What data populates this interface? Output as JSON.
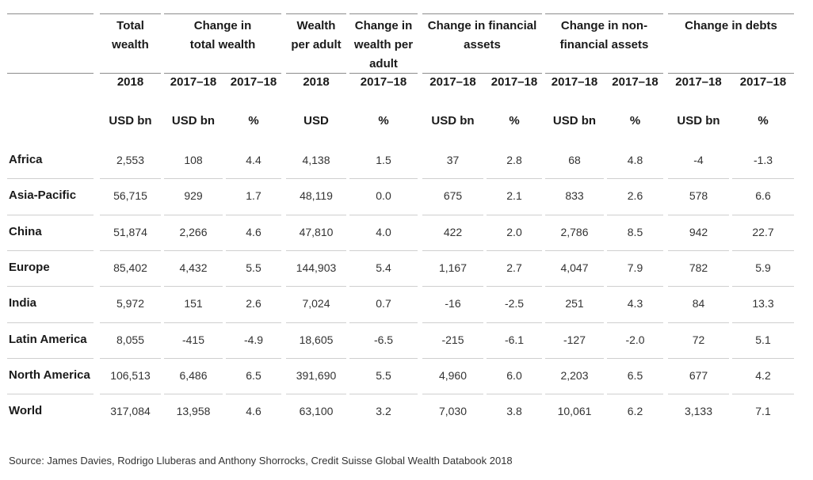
{
  "chart_data": {
    "type": "table",
    "header_groups": [
      {
        "label": "",
        "span": 1
      },
      {
        "label": "Total\nwealth",
        "span": 1
      },
      {
        "label": "Change in\ntotal wealth",
        "span": 2
      },
      {
        "label": "Wealth\nper adult",
        "span": 1
      },
      {
        "label": "Change in\nwealth per\nadult",
        "span": 1
      },
      {
        "label": "Change in financial\nassets",
        "span": 2
      },
      {
        "label": "Change in non-\nfinancial assets",
        "span": 2
      },
      {
        "label": "Change in debts",
        "span": 2
      }
    ],
    "years": [
      "2018",
      "2017–18",
      "2017–18",
      "2018",
      "2017–18",
      "2017–18",
      "2017–18",
      "2017–18",
      "2017–18",
      "2017–18",
      "2017–18"
    ],
    "units": [
      "USD bn",
      "USD bn",
      "%",
      "USD",
      "%",
      "USD bn",
      "%",
      "USD bn",
      "%",
      "USD bn",
      "%"
    ],
    "rows": [
      {
        "label": "Africa",
        "values": [
          "2,553",
          "108",
          "4.4",
          "4,138",
          "1.5",
          "37",
          "2.8",
          "68",
          "4.8",
          "-4",
          "-1.3"
        ]
      },
      {
        "label": "Asia-Pacific",
        "values": [
          "56,715",
          "929",
          "1.7",
          "48,119",
          "0.0",
          "675",
          "2.1",
          "833",
          "2.6",
          "578",
          "6.6"
        ]
      },
      {
        "label": "China",
        "values": [
          "51,874",
          "2,266",
          "4.6",
          "47,810",
          "4.0",
          "422",
          "2.0",
          "2,786",
          "8.5",
          "942",
          "22.7"
        ]
      },
      {
        "label": "Europe",
        "values": [
          "85,402",
          "4,432",
          "5.5",
          "144,903",
          "5.4",
          "1,167",
          "2.7",
          "4,047",
          "7.9",
          "782",
          "5.9"
        ]
      },
      {
        "label": "India",
        "values": [
          "5,972",
          "151",
          "2.6",
          "7,024",
          "0.7",
          "-16",
          "-2.5",
          "251",
          "4.3",
          "84",
          "13.3"
        ]
      },
      {
        "label": "Latin America",
        "values": [
          "8,055",
          "-415",
          "-4.9",
          "18,605",
          "-6.5",
          "-215",
          "-6.1",
          "-127",
          "-2.0",
          "72",
          "5.1"
        ]
      },
      {
        "label": "North America",
        "values": [
          "106,513",
          "6,486",
          "6.5",
          "391,690",
          "5.5",
          "4,960",
          "6.0",
          "2,203",
          "6.5",
          "677",
          "4.2"
        ]
      },
      {
        "label": "World",
        "values": [
          "317,084",
          "13,958",
          "4.6",
          "63,100",
          "3.2",
          "7,030",
          "3.8",
          "10,061",
          "6.2",
          "3,133",
          "7.1"
        ]
      }
    ],
    "source": "Source: James Davies, Rodrigo Lluberas and Anthony Shorrocks, Credit Suisse Global Wealth Databook 2018"
  }
}
